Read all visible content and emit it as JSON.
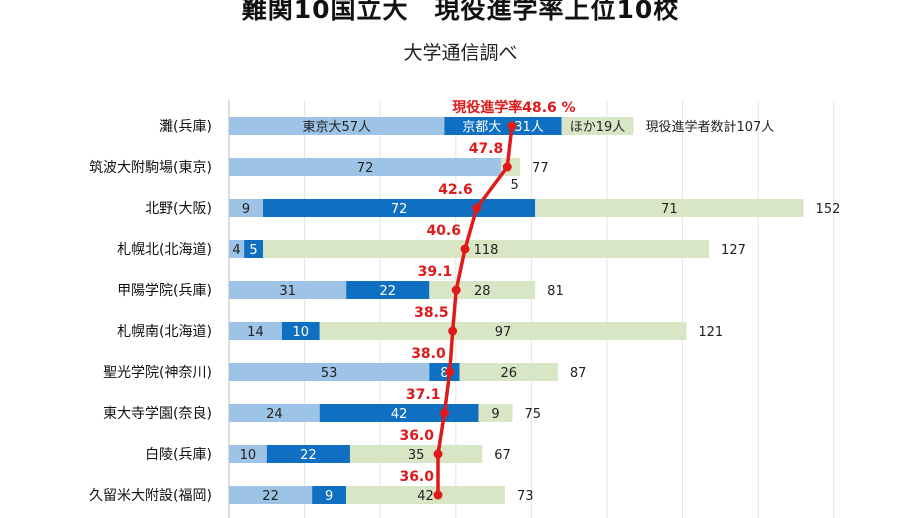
{
  "chart_data": {
    "type": "bar",
    "stacked": true,
    "orientation": "horizontal",
    "title": "難関10国立大　現役進学率上位10校",
    "subtitle": "大学通信調べ",
    "categories": [
      "灘(兵庫)",
      "筑波大附駒場(東京)",
      "北野(大阪)",
      "札幌北(北海道)",
      "甲陽学院(兵庫)",
      "札幌南(北海道)",
      "聖光学院(神奈川)",
      "東大寺学園(奈良)",
      "白陵(兵庫)",
      "久留米大附設(福岡)"
    ],
    "series": [
      {
        "name": "東京大",
        "color": "#9dc3e6",
        "values": [
          57,
          72,
          9,
          4,
          31,
          14,
          53,
          24,
          10,
          22
        ]
      },
      {
        "name": "京都大",
        "color": "#0f6fc0",
        "values": [
          31,
          0,
          72,
          5,
          22,
          10,
          8,
          42,
          22,
          9
        ]
      },
      {
        "name": "ほか",
        "color": "#d9e6c5",
        "values": [
          19,
          5,
          71,
          118,
          28,
          97,
          26,
          9,
          35,
          42
        ]
      }
    ],
    "totals": [
      107,
      77,
      152,
      127,
      81,
      121,
      87,
      75,
      67,
      73
    ],
    "rate_series": {
      "name": "現役進学率",
      "color": "#e0191a",
      "values": [
        48.6,
        47.8,
        42.6,
        40.6,
        39.1,
        38.5,
        38.0,
        37.1,
        36.0,
        36.0
      ],
      "labels": [
        "48.6",
        "47.8",
        "42.6",
        "40.6",
        "39.1",
        "38.5",
        "38.0",
        "37.1",
        "36.0",
        "36.0"
      ]
    },
    "first_row_labels": {
      "tokyo": "東京大57人",
      "kyoto": "京都大　31人",
      "other": "ほか19人",
      "total": "現役進学者数計107人",
      "rate": "現役進学率48.6 %"
    }
  }
}
